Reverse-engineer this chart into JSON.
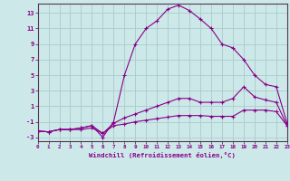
{
  "xlabel": "Windchill (Refroidissement éolien,°C)",
  "background_color": "#cce8e8",
  "grid_color": "#aacccc",
  "line_color": "#880088",
  "spine_color": "#553355",
  "xlim": [
    0,
    23
  ],
  "ylim": [
    -3.5,
    14.2
  ],
  "xticks": [
    0,
    1,
    2,
    3,
    4,
    5,
    6,
    7,
    8,
    9,
    10,
    11,
    12,
    13,
    14,
    15,
    16,
    17,
    18,
    19,
    20,
    21,
    22,
    23
  ],
  "yticks": [
    -3,
    -1,
    1,
    3,
    5,
    7,
    9,
    11,
    13
  ],
  "curve1_x": [
    0,
    1,
    2,
    3,
    4,
    5,
    6,
    7,
    8,
    9,
    10,
    11,
    12,
    13,
    14,
    15,
    16,
    17,
    18,
    19,
    20,
    21,
    22,
    23
  ],
  "curve1_y": [
    -2.2,
    -2.3,
    -2.0,
    -2.0,
    -2.0,
    -1.8,
    -2.5,
    -1.5,
    -1.3,
    -1.0,
    -0.8,
    -0.6,
    -0.4,
    -0.2,
    -0.2,
    -0.2,
    -0.3,
    -0.3,
    -0.3,
    0.5,
    0.5,
    0.5,
    0.3,
    -1.5
  ],
  "curve2_x": [
    0,
    1,
    2,
    3,
    4,
    5,
    6,
    7,
    8,
    9,
    10,
    11,
    12,
    13,
    14,
    15,
    16,
    17,
    18,
    19,
    20,
    21,
    22,
    23
  ],
  "curve2_y": [
    -2.2,
    -2.3,
    -2.0,
    -2.0,
    -1.8,
    -1.5,
    -2.5,
    -1.2,
    -0.5,
    0.0,
    0.5,
    1.0,
    1.5,
    2.0,
    2.0,
    1.5,
    1.5,
    1.5,
    2.0,
    3.5,
    2.2,
    1.8,
    1.5,
    -1.5
  ],
  "curve3_x": [
    0,
    1,
    2,
    3,
    4,
    5,
    6,
    7,
    8,
    9,
    10,
    11,
    12,
    13,
    14,
    15,
    16,
    17,
    18,
    19,
    20,
    21,
    22,
    23
  ],
  "curve3_y": [
    -2.2,
    -2.3,
    -2.0,
    -2.0,
    -1.8,
    -1.5,
    -3.0,
    -1.0,
    5.0,
    9.0,
    11.0,
    12.0,
    13.5,
    14.0,
    13.3,
    12.2,
    11.0,
    9.0,
    8.5,
    7.0,
    5.0,
    3.8,
    3.5,
    -1.2
  ]
}
